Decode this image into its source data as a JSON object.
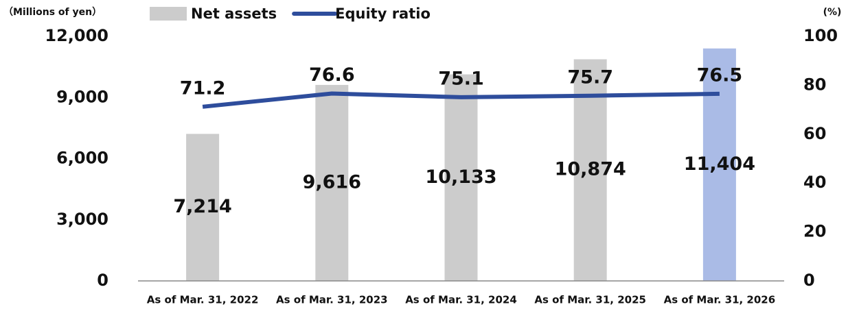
{
  "chart_data": {
    "type": "bar-line",
    "ylabel": "（Millions of yen）",
    "y2label": "(%)",
    "categories": [
      "As of Mar. 31, 2022",
      "As of Mar. 31, 2023",
      "As of Mar. 31, 2024",
      "As of Mar. 31, 2025",
      "As of Mar. 31, 2026"
    ],
    "series": [
      {
        "name": "Net assets",
        "type": "bar",
        "color": "#cccccc",
        "colors": [
          "#cccccc",
          "#cccccc",
          "#cccccc",
          "#cccccc",
          "#aabbe6"
        ],
        "values": [
          7214,
          9616,
          10133,
          10874,
          11404
        ],
        "value_labels": [
          "7,214",
          "9,616",
          "10,133",
          "10,874",
          "11,404"
        ]
      },
      {
        "name": "Equity ratio",
        "type": "line",
        "axis": "y2",
        "color": "#2e4d9c",
        "values": [
          71.2,
          76.6,
          75.1,
          75.7,
          76.5
        ]
      }
    ],
    "ylim": [
      0,
      12000
    ],
    "yticks": [
      0,
      {
        "value": 3000,
        "label": "3,000"
      },
      {
        "value": 6000,
        "label": "6,000"
      },
      {
        "value": 9000,
        "label": "9,000"
      },
      {
        "value": 12000,
        "label": "12,000"
      }
    ],
    "y2lim": [
      0,
      100
    ],
    "y2ticks": [
      0,
      20,
      40,
      60,
      80,
      100
    ],
    "grid": false,
    "legend": "top"
  }
}
